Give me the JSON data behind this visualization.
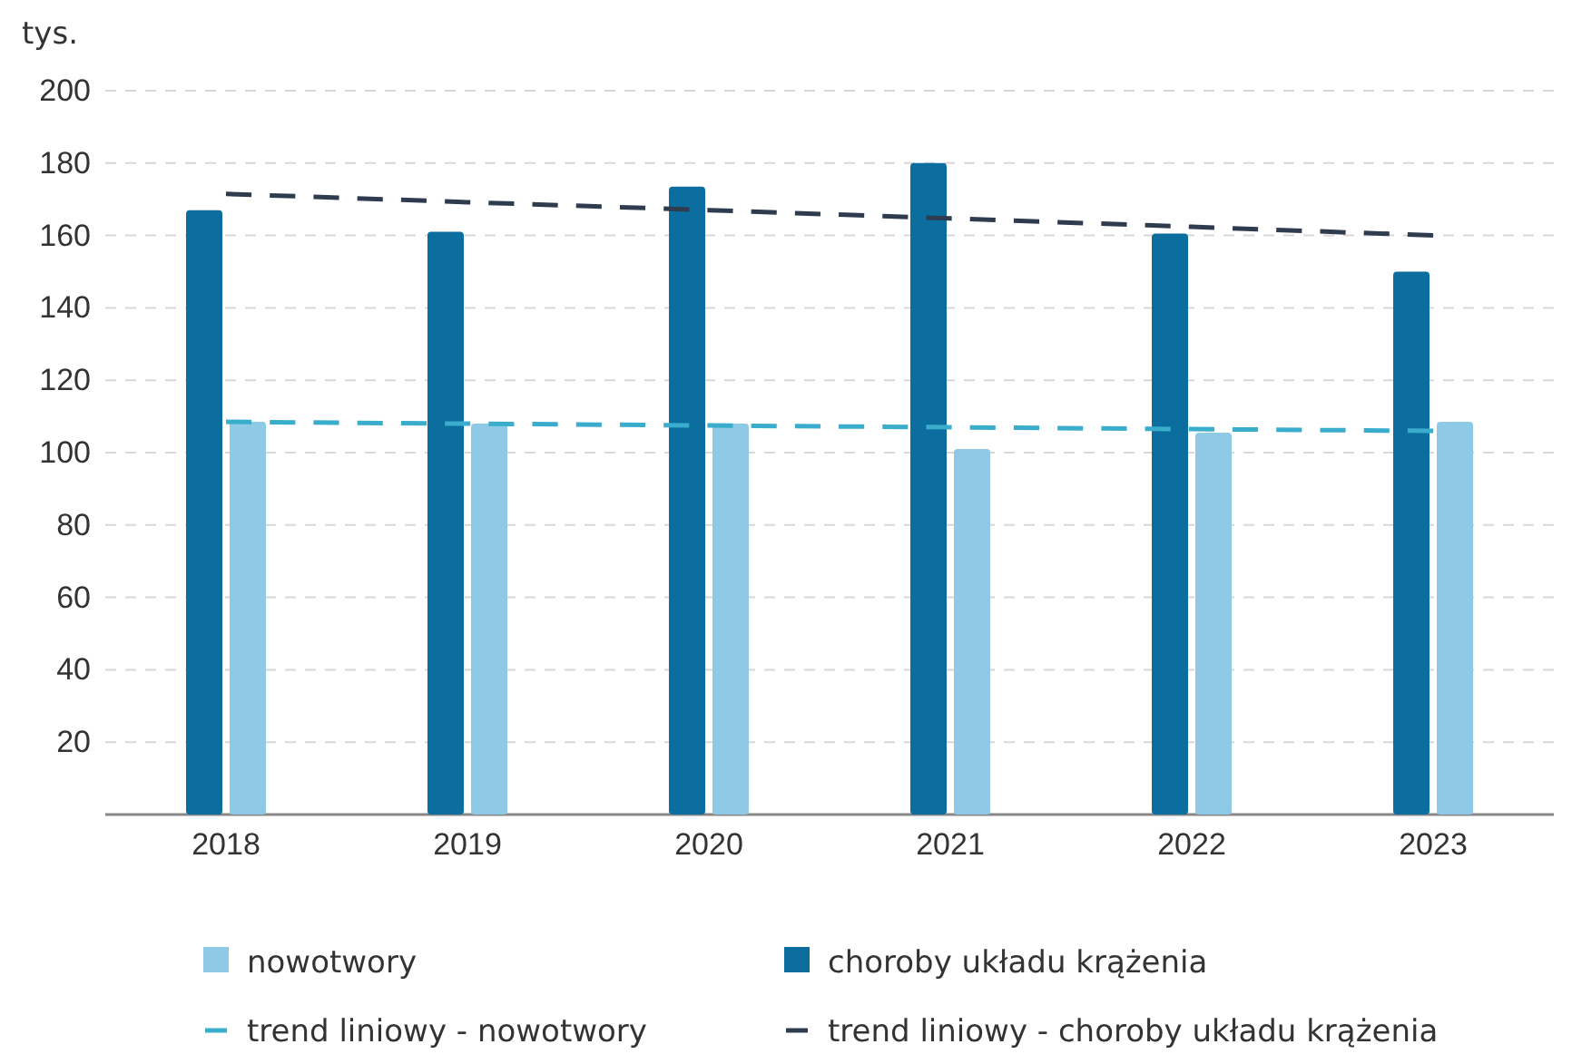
{
  "chart_data": {
    "type": "bar",
    "ylabel": "tys.",
    "categories": [
      "2018",
      "2019",
      "2020",
      "2021",
      "2022",
      "2023"
    ],
    "series": [
      {
        "name": "nowotwory",
        "color": "#8ecae6",
        "values": [
          108.5,
          108,
          108,
          101,
          105.5,
          108.5
        ]
      },
      {
        "name": "choroby układu krążenia",
        "color": "#0b6e9e",
        "values": [
          167,
          161,
          173.5,
          180,
          160.5,
          150
        ]
      },
      {
        "name": "trend liniowy - nowotwory",
        "type": "line",
        "line_style": "dashed",
        "color": "#3aaccc",
        "values": [
          108.5,
          108,
          107.5,
          107,
          106.5,
          106
        ]
      },
      {
        "name": "trend liniowy - choroby układu krążenia",
        "type": "line",
        "line_style": "dashed",
        "color": "#2f3b4e",
        "values": [
          171.5,
          169.2,
          167,
          164.7,
          162.4,
          160
        ]
      }
    ],
    "ylim": [
      0,
      200
    ],
    "yticks": [
      {
        "value": 0,
        "label": null
      },
      20,
      40,
      60,
      80,
      100,
      120,
      140,
      160,
      180,
      200
    ],
    "grid": "y",
    "legend": "bottom"
  }
}
